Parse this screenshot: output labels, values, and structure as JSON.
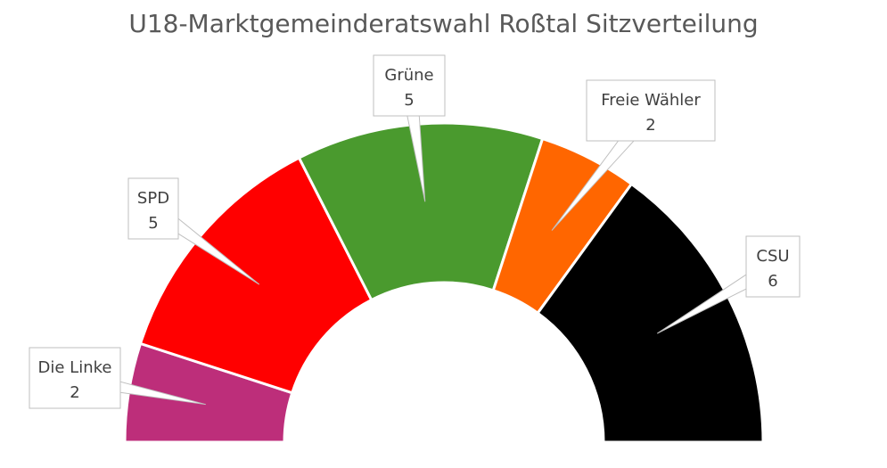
{
  "title": "U18-Marktgemeinderatswahl Roßtal Sitzverteilung",
  "chart_data": {
    "type": "pie",
    "variant": "half-donut",
    "title": "U18-Marktgemeinderatswahl Roßtal Sitzverteilung",
    "categories": [
      "Die Linke",
      "SPD",
      "Grüne",
      "Freie Wähler",
      "CSU"
    ],
    "values": [
      2,
      5,
      5,
      2,
      6
    ],
    "colors": [
      "#bd2e7a",
      "#ff0000",
      "#4a9a2e",
      "#ff6600",
      "#000000"
    ],
    "data_labels": [
      {
        "name": "Die Linke",
        "value": "2"
      },
      {
        "name": "SPD",
        "value": "5"
      },
      {
        "name": "Grüne",
        "value": "5"
      },
      {
        "name": "Freie Wähler",
        "value": "2"
      },
      {
        "name": "CSU",
        "value": "6"
      }
    ]
  }
}
